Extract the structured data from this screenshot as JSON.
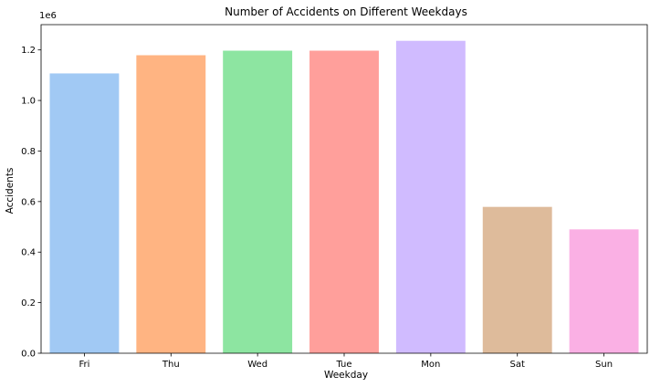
{
  "chart_data": {
    "type": "bar",
    "title": "Number of Accidents on Different Weekdays",
    "xlabel": "Weekday",
    "ylabel": "Accidents",
    "y_offset_label": "1e6",
    "y_scale": 1000000,
    "ylim": [
      0,
      1.3
    ],
    "yticks": [
      0.0,
      0.2,
      0.4,
      0.6,
      0.8,
      1.0,
      1.2
    ],
    "ytick_labels": [
      "0.0",
      "0.2",
      "0.4",
      "0.6",
      "0.8",
      "1.0",
      "1.2"
    ],
    "grid": false,
    "categories": [
      "Fri",
      "Thu",
      "Wed",
      "Tue",
      "Mon",
      "Sat",
      "Sun"
    ],
    "values": [
      1107000,
      1179000,
      1197000,
      1197000,
      1236000,
      579000,
      490000
    ],
    "colors": [
      "#a1c9f4",
      "#ffb482",
      "#8de5a1",
      "#ff9f9b",
      "#d0bbff",
      "#debb9b",
      "#fab0e4"
    ]
  }
}
